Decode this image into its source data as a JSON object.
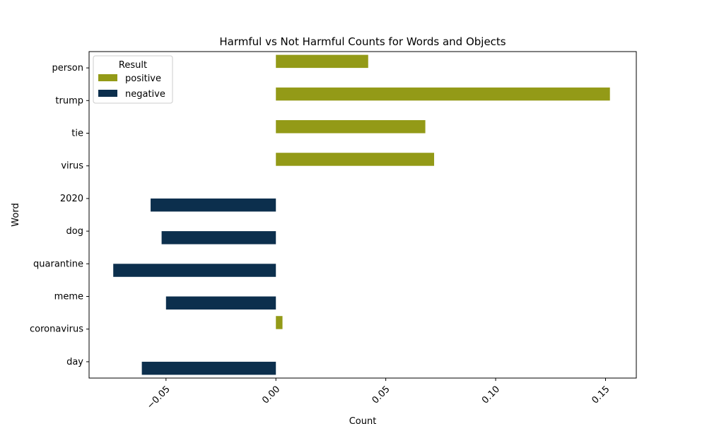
{
  "chart_data": {
    "type": "bar",
    "orientation": "horizontal",
    "title": "Harmful vs Not Harmful Counts for Words and Objects",
    "xlabel": "Count",
    "ylabel": "Word",
    "categories": [
      "person",
      "trump",
      "tie",
      "virus",
      "2020",
      "dog",
      "quarantine",
      "meme",
      "coronavirus",
      "day"
    ],
    "xlim": [
      -0.085,
      0.164
    ],
    "x_ticks": [
      -0.05,
      0.0,
      0.05,
      0.1,
      0.15
    ],
    "x_tick_labels": [
      "−0.05",
      "0.00",
      "0.05",
      "0.10",
      "0.15"
    ],
    "x_tick_rotation_deg": 45,
    "grid": false,
    "legend": {
      "title": "Result",
      "placement": "top-left"
    },
    "series": [
      {
        "name": "positive",
        "color": "#939a17",
        "values": [
          0.042,
          0.152,
          0.068,
          0.072,
          null,
          null,
          null,
          null,
          0.003,
          null
        ]
      },
      {
        "name": "negative",
        "color": "#0c2f4d",
        "values": [
          null,
          null,
          null,
          null,
          -0.057,
          -0.052,
          -0.074,
          -0.05,
          null,
          -0.061
        ]
      }
    ]
  }
}
